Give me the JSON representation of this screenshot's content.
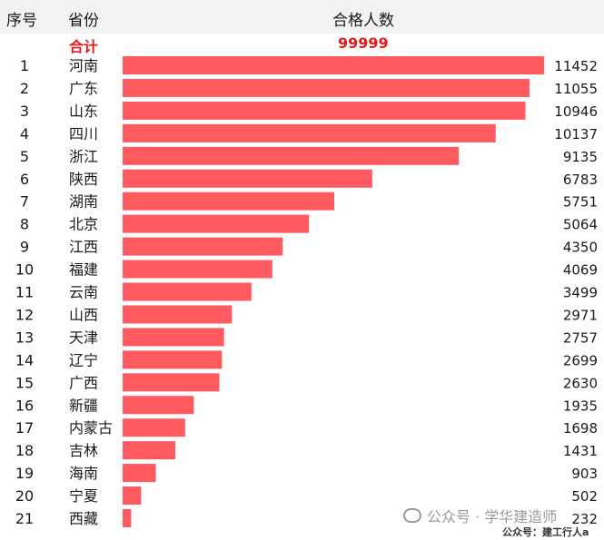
{
  "header": {
    "index": "序号",
    "province": "省份",
    "count": "合格人数"
  },
  "total": {
    "label": "合计",
    "value": "99999"
  },
  "colors": {
    "bar": "#ff5a5f",
    "total_text": "#e31a1c",
    "header_bg": "#f2f2f2"
  },
  "watermark": {
    "line1": "公众号 · 学华建造师",
    "line2": "公众号：建工行人a"
  },
  "chart_data": {
    "type": "bar",
    "orientation": "horizontal",
    "index": [
      "1",
      "2",
      "3",
      "4",
      "5",
      "6",
      "7",
      "8",
      "9",
      "10",
      "11",
      "12",
      "13",
      "14",
      "15",
      "16",
      "17",
      "18",
      "19",
      "20",
      "21"
    ],
    "categories": [
      "河南",
      "广东",
      "山东",
      "四川",
      "浙江",
      "陕西",
      "湖南",
      "北京",
      "江西",
      "福建",
      "云南",
      "山西",
      "天津",
      "辽宁",
      "广西",
      "新疆",
      "内蒙古",
      "吉林",
      "海南",
      "宁夏",
      "西藏"
    ],
    "values": [
      11452,
      11055,
      10946,
      10137,
      9135,
      6783,
      5751,
      5064,
      4350,
      4069,
      3499,
      2971,
      2757,
      2699,
      2630,
      1935,
      1698,
      1431,
      903,
      502,
      232
    ],
    "value_labels": [
      "11452",
      "11055",
      "10946",
      "10137",
      "9135",
      "6783",
      "5751",
      "5064",
      "4350",
      "4069",
      "3499",
      "2971",
      "2757",
      "2699",
      "2630",
      "1935",
      "1698",
      "1431",
      "903",
      "502",
      "232"
    ],
    "title": "合格人数",
    "xlim": [
      0,
      11452
    ]
  }
}
